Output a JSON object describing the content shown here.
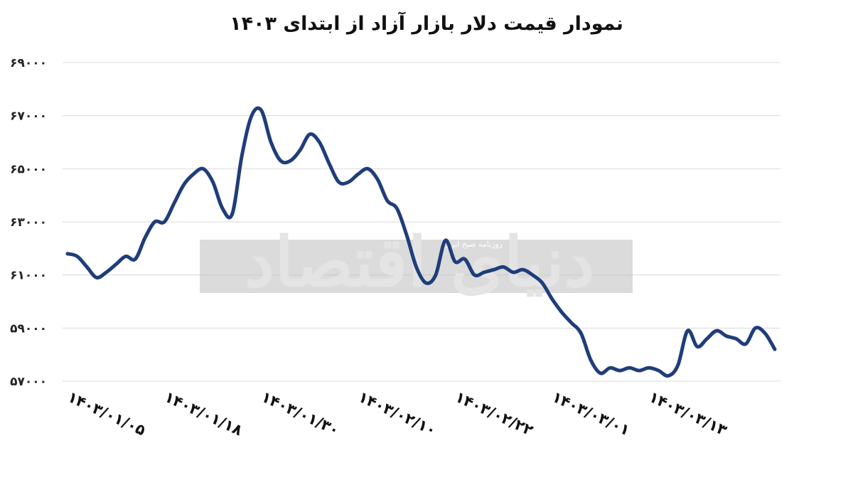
{
  "chart_data": {
    "type": "line",
    "title": "نمودار قیمت دلار بازار آزاد از ابتدای ۱۴۰۳",
    "xlabel": "",
    "ylabel": "",
    "y_ticks": [
      "۶۹۰۰۰",
      "۶۷۰۰۰",
      "۶۵۰۰۰",
      "۶۳۰۰۰",
      "۶۱۰۰۰",
      "۵۹۰۰۰",
      "۵۷۰۰۰"
    ],
    "y_tick_values": [
      69000,
      67000,
      65000,
      63000,
      61000,
      59000,
      57000
    ],
    "ylim": [
      57000,
      69000
    ],
    "x_ticks": [
      "۱۴۰۳/۰۱/۰۵",
      "۱۴۰۳/۰۱/۱۸",
      "۱۴۰۳/۰۱/۳۰",
      "۱۴۰۳/۰۲/۱۰",
      "۱۴۰۳/۰۲/۲۲",
      "۱۴۰۳/۰۳/۰۱",
      "۱۴۰۳/۰۳/۱۳"
    ],
    "x_tick_index": [
      0,
      10,
      20,
      30,
      40,
      50,
      60
    ],
    "grid": true,
    "line_color": "#1f3d7a",
    "series": [
      {
        "values": [
          61800,
          61700,
          61300,
          60900,
          61100,
          61400,
          61700,
          61600,
          62400,
          63000,
          63000,
          63700,
          64400,
          64800,
          65000,
          64500,
          63500,
          63300,
          65500,
          67000,
          67200,
          66000,
          65300,
          65300,
          65700,
          66300,
          66000,
          65200,
          64500,
          64500,
          64800,
          65000,
          64600,
          63800,
          63500,
          62500,
          61300,
          60700,
          61000,
          62300,
          61500,
          61600,
          61000,
          61100,
          61200,
          61300,
          61100,
          61200,
          61000,
          60700,
          60100,
          59600,
          59200,
          58800,
          57800,
          57300,
          57500,
          57400,
          57500,
          57400,
          57500,
          57400,
          57200,
          57600,
          58900,
          58300,
          58600,
          58900,
          58700,
          58600,
          58400,
          59000,
          58800,
          58200
        ]
      }
    ]
  },
  "watermark": {
    "main": "دنیای اقتصاد",
    "small": "روزنامه صبح ایران"
  }
}
